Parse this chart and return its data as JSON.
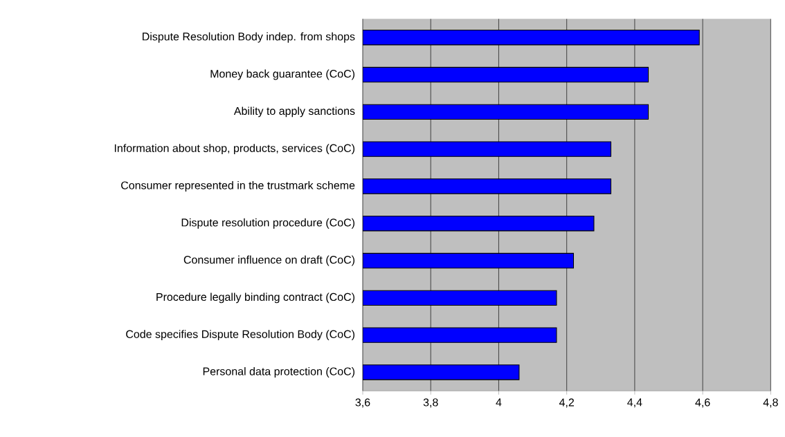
{
  "chart_data": {
    "type": "bar",
    "orientation": "horizontal",
    "categories": [
      "Dispute Resolution Body indep. from shops",
      "Money back guarantee (CoC)",
      "Ability to apply sanctions",
      "Information about shop, products, services (CoC)",
      "Consumer represented in the trustmark scheme",
      "Dispute resolution procedure (CoC)",
      "Consumer influence on draft (CoC)",
      "Procedure legally binding contract (CoC)",
      "Code specifies Dispute Resolution Body (CoC)",
      "Personal data protection (CoC)"
    ],
    "values": [
      4.59,
      4.44,
      4.44,
      4.33,
      4.33,
      4.28,
      4.22,
      4.17,
      4.17,
      4.06
    ],
    "color": "#0000ff",
    "xlim": [
      3.6,
      4.8
    ],
    "xticks": [
      {
        "value": 3.6,
        "label": "3,6"
      },
      {
        "value": 3.8,
        "label": "3,8"
      },
      {
        "value": 4,
        "label": "4"
      },
      {
        "value": 4.2,
        "label": "4,2"
      },
      {
        "value": 4.4,
        "label": "4,4"
      },
      {
        "value": 4.6,
        "label": "4,6"
      },
      {
        "value": 4.8,
        "label": "4,8"
      }
    ],
    "grid": "x"
  }
}
